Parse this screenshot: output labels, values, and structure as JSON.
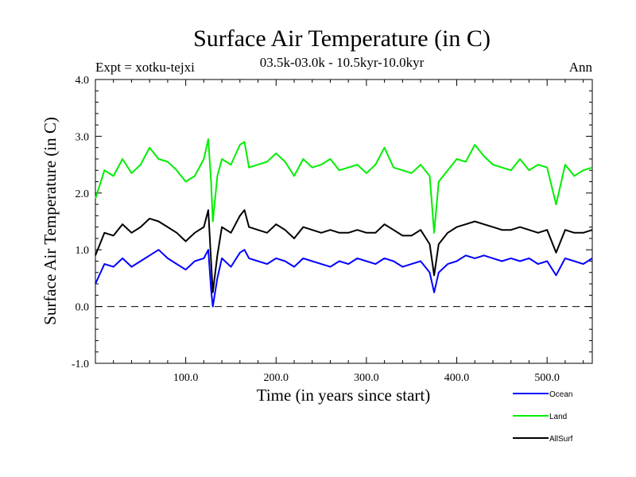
{
  "chart_data": {
    "type": "line",
    "title": "Surface Air Temperature (in C)",
    "subtitle": "03.5k-03.0k - 10.5kyr-10.0kyr",
    "expt_label": "Expt = xotku-tejxi",
    "season_label": "Ann",
    "xlabel": "Time (in years since start)",
    "ylabel": "Surface Air Temperature (in C)",
    "xlim": [
      0,
      550
    ],
    "ylim": [
      -1.0,
      4.0
    ],
    "xticks": [
      100,
      200,
      300,
      400,
      500
    ],
    "xtick_labels": [
      "100.0",
      "200.0",
      "300.0",
      "400.0",
      "500.0"
    ],
    "yticks": [
      -1,
      0,
      1,
      2,
      3,
      4
    ],
    "ytick_labels": [
      "-1.0",
      "0.0",
      "1.0",
      "2.0",
      "3.0",
      "4.0"
    ],
    "zero_line": 0.0,
    "legend_position": "bottom-right",
    "series": [
      {
        "name": "Ocean",
        "color": "#0000ff",
        "x": [
          0,
          10,
          20,
          30,
          40,
          50,
          60,
          70,
          80,
          90,
          100,
          110,
          120,
          125,
          128,
          130,
          135,
          140,
          150,
          160,
          165,
          170,
          180,
          190,
          200,
          210,
          220,
          230,
          240,
          250,
          260,
          270,
          280,
          290,
          300,
          310,
          320,
          330,
          340,
          350,
          360,
          370,
          375,
          380,
          390,
          400,
          410,
          420,
          430,
          440,
          450,
          460,
          470,
          480,
          490,
          500,
          510,
          520,
          530,
          540,
          550
        ],
        "values": [
          0.4,
          0.75,
          0.7,
          0.85,
          0.7,
          0.8,
          0.9,
          1.0,
          0.85,
          0.75,
          0.65,
          0.8,
          0.85,
          1.0,
          0.3,
          0.0,
          0.5,
          0.85,
          0.7,
          0.95,
          1.0,
          0.85,
          0.8,
          0.75,
          0.85,
          0.8,
          0.7,
          0.85,
          0.8,
          0.75,
          0.7,
          0.8,
          0.75,
          0.85,
          0.8,
          0.75,
          0.85,
          0.8,
          0.7,
          0.75,
          0.8,
          0.6,
          0.25,
          0.6,
          0.75,
          0.8,
          0.9,
          0.85,
          0.9,
          0.85,
          0.8,
          0.85,
          0.8,
          0.85,
          0.75,
          0.8,
          0.55,
          0.85,
          0.8,
          0.75,
          0.85
        ]
      },
      {
        "name": "Land",
        "color": "#00ee00",
        "x": [
          0,
          10,
          20,
          30,
          40,
          50,
          60,
          70,
          80,
          90,
          100,
          110,
          120,
          125,
          128,
          130,
          135,
          140,
          150,
          160,
          165,
          170,
          180,
          190,
          200,
          210,
          220,
          230,
          240,
          250,
          260,
          270,
          280,
          290,
          300,
          310,
          320,
          330,
          340,
          350,
          360,
          370,
          375,
          380,
          390,
          400,
          410,
          420,
          430,
          440,
          450,
          460,
          470,
          480,
          490,
          500,
          510,
          520,
          530,
          540,
          550
        ],
        "values": [
          1.9,
          2.4,
          2.3,
          2.6,
          2.35,
          2.5,
          2.8,
          2.6,
          2.55,
          2.4,
          2.2,
          2.3,
          2.6,
          2.95,
          2.2,
          1.5,
          2.3,
          2.6,
          2.5,
          2.85,
          2.9,
          2.45,
          2.5,
          2.55,
          2.7,
          2.55,
          2.3,
          2.6,
          2.45,
          2.5,
          2.6,
          2.4,
          2.45,
          2.5,
          2.35,
          2.5,
          2.8,
          2.45,
          2.4,
          2.35,
          2.5,
          2.3,
          1.3,
          2.2,
          2.4,
          2.6,
          2.55,
          2.85,
          2.65,
          2.5,
          2.45,
          2.4,
          2.6,
          2.4,
          2.5,
          2.45,
          1.8,
          2.5,
          2.3,
          2.4,
          2.45
        ]
      },
      {
        "name": "AllSurf",
        "color": "#000000",
        "x": [
          0,
          10,
          20,
          30,
          40,
          50,
          60,
          70,
          80,
          90,
          100,
          110,
          120,
          125,
          128,
          130,
          135,
          140,
          150,
          160,
          165,
          170,
          180,
          190,
          200,
          210,
          220,
          230,
          240,
          250,
          260,
          270,
          280,
          290,
          300,
          310,
          320,
          330,
          340,
          350,
          360,
          370,
          375,
          380,
          390,
          400,
          410,
          420,
          430,
          440,
          450,
          460,
          470,
          480,
          490,
          500,
          510,
          520,
          530,
          540,
          550
        ],
        "values": [
          0.9,
          1.3,
          1.25,
          1.45,
          1.3,
          1.4,
          1.55,
          1.5,
          1.4,
          1.3,
          1.15,
          1.3,
          1.4,
          1.7,
          0.8,
          0.25,
          0.9,
          1.4,
          1.3,
          1.6,
          1.7,
          1.4,
          1.35,
          1.3,
          1.45,
          1.35,
          1.2,
          1.4,
          1.35,
          1.3,
          1.35,
          1.3,
          1.3,
          1.35,
          1.3,
          1.3,
          1.45,
          1.35,
          1.25,
          1.25,
          1.35,
          1.1,
          0.55,
          1.1,
          1.3,
          1.4,
          1.45,
          1.5,
          1.45,
          1.4,
          1.35,
          1.35,
          1.4,
          1.35,
          1.3,
          1.35,
          0.95,
          1.35,
          1.3,
          1.3,
          1.35
        ]
      }
    ]
  }
}
